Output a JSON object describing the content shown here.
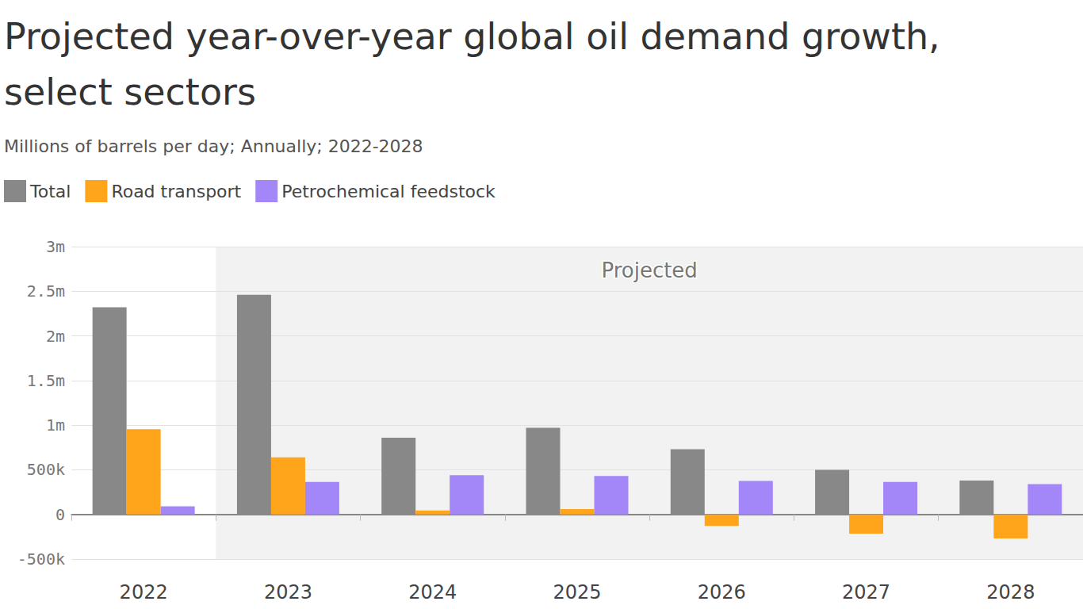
{
  "chart_data": {
    "type": "bar",
    "title": "Projected year-over-year global oil demand growth, select sectors",
    "subtitle": "Millions of barrels per day; Annually; 2022-2028",
    "categories": [
      "2022",
      "2023",
      "2024",
      "2025",
      "2026",
      "2027",
      "2028"
    ],
    "series": [
      {
        "name": "Total",
        "color": "#888888",
        "values": [
          2320000,
          2460000,
          860000,
          970000,
          730000,
          500000,
          380000
        ]
      },
      {
        "name": "Road transport",
        "color": "#ffa51c",
        "values": [
          955000,
          640000,
          45000,
          60000,
          -130000,
          -215000,
          -270000
        ]
      },
      {
        "name": "Petrochemical feedstock",
        "color": "#a386f7",
        "values": [
          90000,
          365000,
          440000,
          430000,
          375000,
          365000,
          340000
        ]
      }
    ],
    "annotations": [
      {
        "text": "Projected",
        "x_start": "2023",
        "x_end": "2028"
      }
    ],
    "ylim": [
      -500000,
      3000000
    ],
    "yticks": [
      {
        "value": -500000,
        "label": "-500k"
      },
      0,
      {
        "value": 500000,
        "label": "500k"
      },
      {
        "value": 1000000,
        "label": "1m"
      },
      {
        "value": 1500000,
        "label": "1.5m"
      },
      {
        "value": 2000000,
        "label": "2m"
      },
      {
        "value": 2500000,
        "label": "2.5m"
      },
      {
        "value": 3000000,
        "label": "3m"
      }
    ],
    "grid": true,
    "legend": "top-left"
  }
}
